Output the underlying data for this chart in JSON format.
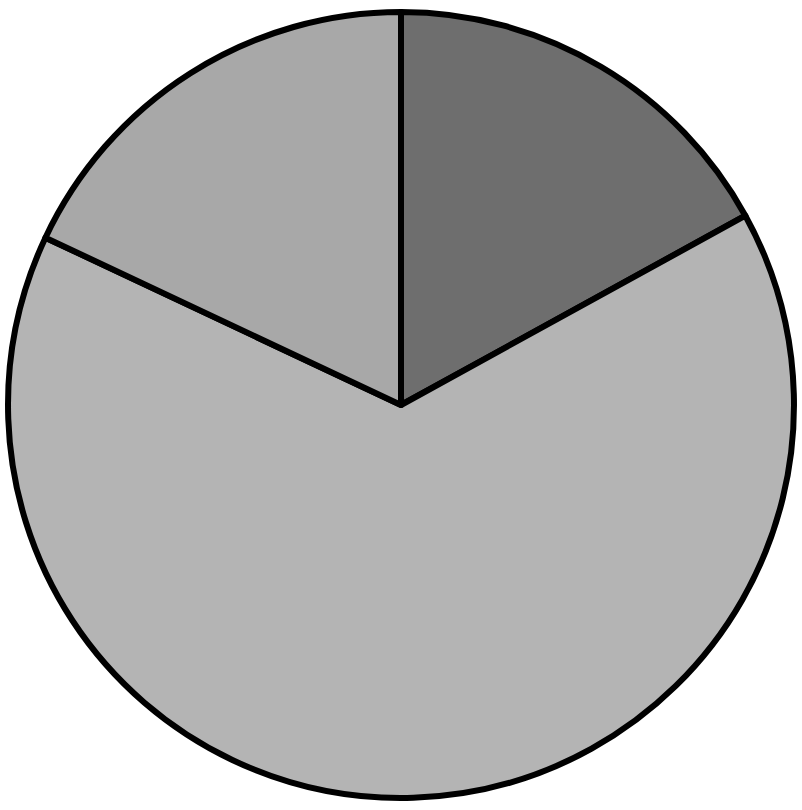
{
  "chart_data": {
    "type": "pie",
    "categories": [
      null,
      null,
      null
    ],
    "values": [
      17,
      65,
      18
    ],
    "colors": [
      "#6e6e6e",
      "#b4b4b4",
      "#a8a8a8"
    ]
  }
}
